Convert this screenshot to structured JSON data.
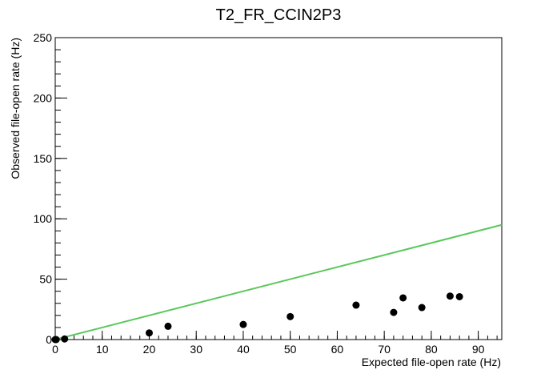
{
  "chart_data": {
    "type": "scatter",
    "title": "T2_FR_CCIN2P3",
    "xlabel": "Expected file-open rate (Hz)",
    "ylabel": "Observed file-open rate (Hz)",
    "xlim": [
      0,
      95
    ],
    "ylim": [
      0,
      250
    ],
    "x_ticks": [
      0,
      10,
      20,
      30,
      40,
      50,
      60,
      70,
      80,
      90
    ],
    "y_ticks": [
      0,
      50,
      100,
      150,
      200,
      250
    ],
    "grid": false,
    "legend": "none",
    "series": [
      {
        "kind": "points",
        "color": "#000000",
        "points": [
          [
            0,
            0
          ],
          [
            0.2,
            0
          ],
          [
            2,
            0.5
          ],
          [
            20,
            5.5
          ],
          [
            24,
            11
          ],
          [
            40,
            12.5
          ],
          [
            50,
            19
          ],
          [
            64,
            28.5
          ],
          [
            72,
            22.5
          ],
          [
            74,
            34.5
          ],
          [
            78,
            26.5
          ],
          [
            84,
            36
          ],
          [
            86,
            35.5
          ]
        ]
      },
      {
        "kind": "line",
        "color": "#5ac85a",
        "points": [
          [
            0,
            0
          ],
          [
            95,
            95
          ]
        ]
      }
    ]
  }
}
